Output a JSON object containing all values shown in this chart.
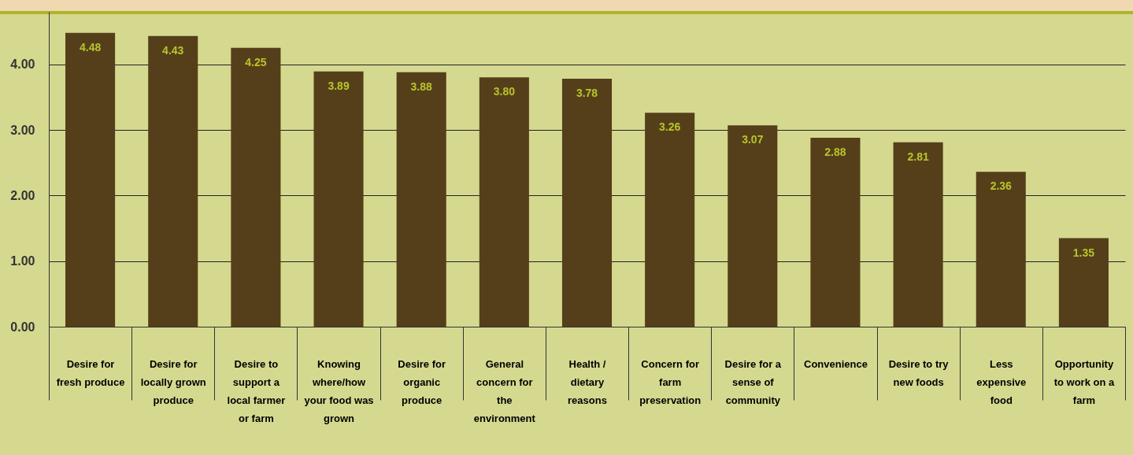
{
  "chart_data": {
    "type": "bar",
    "categories": [
      "Desire for fresh produce",
      "Desire for locally grown produce",
      "Desire to support a local farmer or farm",
      "Knowing where/how your food was grown",
      "Desire for organic produce",
      "General concern for the environment",
      "Health / dietary reasons",
      "Concern for farm preservation",
      "Desire for a sense of community",
      "Convenience",
      "Desire to try new foods",
      "Less expensive food",
      "Opportunity to work on a farm"
    ],
    "values": [
      4.48,
      4.43,
      4.25,
      3.89,
      3.88,
      3.8,
      3.78,
      3.26,
      3.07,
      2.88,
      2.81,
      2.36,
      1.35
    ],
    "value_labels": [
      "4.48",
      "4.43",
      "4.25",
      "3.89",
      "3.88",
      "3.80",
      "3.78",
      "3.26",
      "3.07",
      "2.88",
      "2.81",
      "2.36",
      "1.35"
    ],
    "color": "#553f1a",
    "ylim": [
      0,
      4.8
    ],
    "yticks": [
      {
        "value": 0,
        "label": "0.00"
      },
      {
        "value": 1,
        "label": "1.00"
      },
      {
        "value": 2,
        "label": "2.00"
      },
      {
        "value": 3,
        "label": "3.00"
      },
      {
        "value": 4,
        "label": "4.00"
      }
    ],
    "grid": "y"
  }
}
